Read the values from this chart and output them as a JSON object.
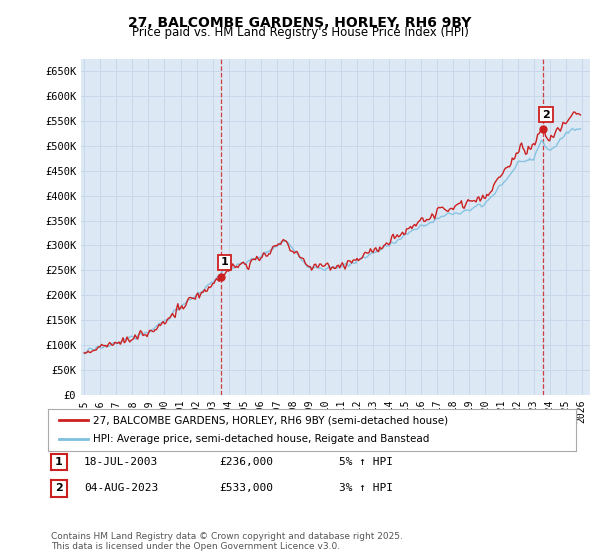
{
  "title": "27, BALCOMBE GARDENS, HORLEY, RH6 9BY",
  "subtitle": "Price paid vs. HM Land Registry's House Price Index (HPI)",
  "ylabel_ticks": [
    "£0",
    "£50K",
    "£100K",
    "£150K",
    "£200K",
    "£250K",
    "£300K",
    "£350K",
    "£400K",
    "£450K",
    "£500K",
    "£550K",
    "£600K",
    "£650K"
  ],
  "ytick_values": [
    0,
    50000,
    100000,
    150000,
    200000,
    250000,
    300000,
    350000,
    400000,
    450000,
    500000,
    550000,
    600000,
    650000
  ],
  "ylim": [
    0,
    675000
  ],
  "xlim_start": 1994.8,
  "xlim_end": 2026.5,
  "xtick_years": [
    1995,
    1996,
    1997,
    1998,
    1999,
    2000,
    2001,
    2002,
    2003,
    2004,
    2005,
    2006,
    2007,
    2008,
    2009,
    2010,
    2011,
    2012,
    2013,
    2014,
    2015,
    2016,
    2017,
    2018,
    2019,
    2020,
    2021,
    2022,
    2023,
    2024,
    2025,
    2026
  ],
  "sale1_x": 2003.54,
  "sale1_y": 236000,
  "sale1_label": "1",
  "sale2_x": 2023.58,
  "sale2_y": 533000,
  "sale2_label": "2",
  "hpi_color": "#7fbfdf",
  "property_color": "#cc2020",
  "dashed_color": "#cc2020",
  "legend_property": "27, BALCOMBE GARDENS, HORLEY, RH6 9BY (semi-detached house)",
  "legend_hpi": "HPI: Average price, semi-detached house, Reigate and Banstead",
  "table_row1": [
    "1",
    "18-JUL-2003",
    "£236,000",
    "5% ↑ HPI"
  ],
  "table_row2": [
    "2",
    "04-AUG-2023",
    "£533,000",
    "3% ↑ HPI"
  ],
  "footer": "Contains HM Land Registry data © Crown copyright and database right 2025.\nThis data is licensed under the Open Government Licence v3.0.",
  "bg_color": "#ffffff",
  "plot_bg_color": "#dce9f5",
  "grid_color": "#c8d8ea"
}
